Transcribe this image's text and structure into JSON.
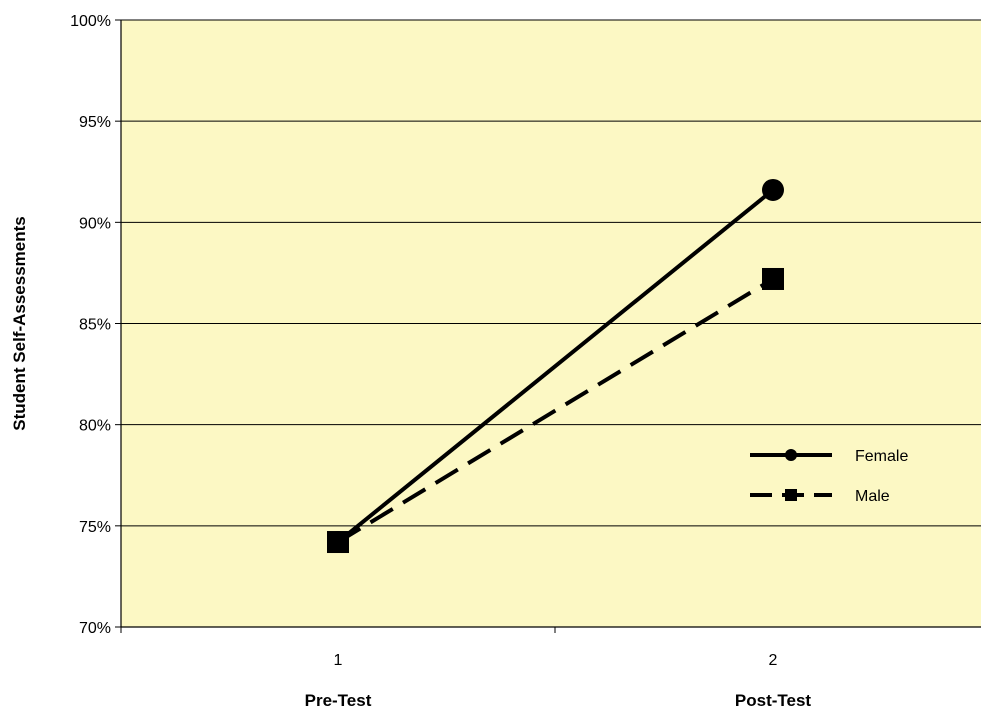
{
  "chart_data": {
    "type": "line",
    "title": "",
    "ylabel": "Student Self-Assessments",
    "xlabel": "",
    "categories": [
      "1",
      "2"
    ],
    "category_titles": [
      "Pre-Test",
      "Post-Test"
    ],
    "ylim": [
      0.7,
      1.0
    ],
    "yticks": [
      0.7,
      0.75,
      0.8,
      0.85,
      0.9,
      0.95,
      1.0
    ],
    "ytick_labels": [
      "70%",
      "75%",
      "80%",
      "85%",
      "90%",
      "95%",
      "100%"
    ],
    "grid": true,
    "legend_position": "right",
    "series": [
      {
        "name": "Female",
        "values": [
          0.742,
          0.916
        ],
        "marker": "circle",
        "line": "solid"
      },
      {
        "name": "Male",
        "values": [
          0.742,
          0.872
        ],
        "marker": "square",
        "line": "dashed"
      }
    ]
  },
  "colors": {
    "plot_background": "#fcf8c4",
    "series_stroke": "#000000",
    "grid": "#000000"
  }
}
